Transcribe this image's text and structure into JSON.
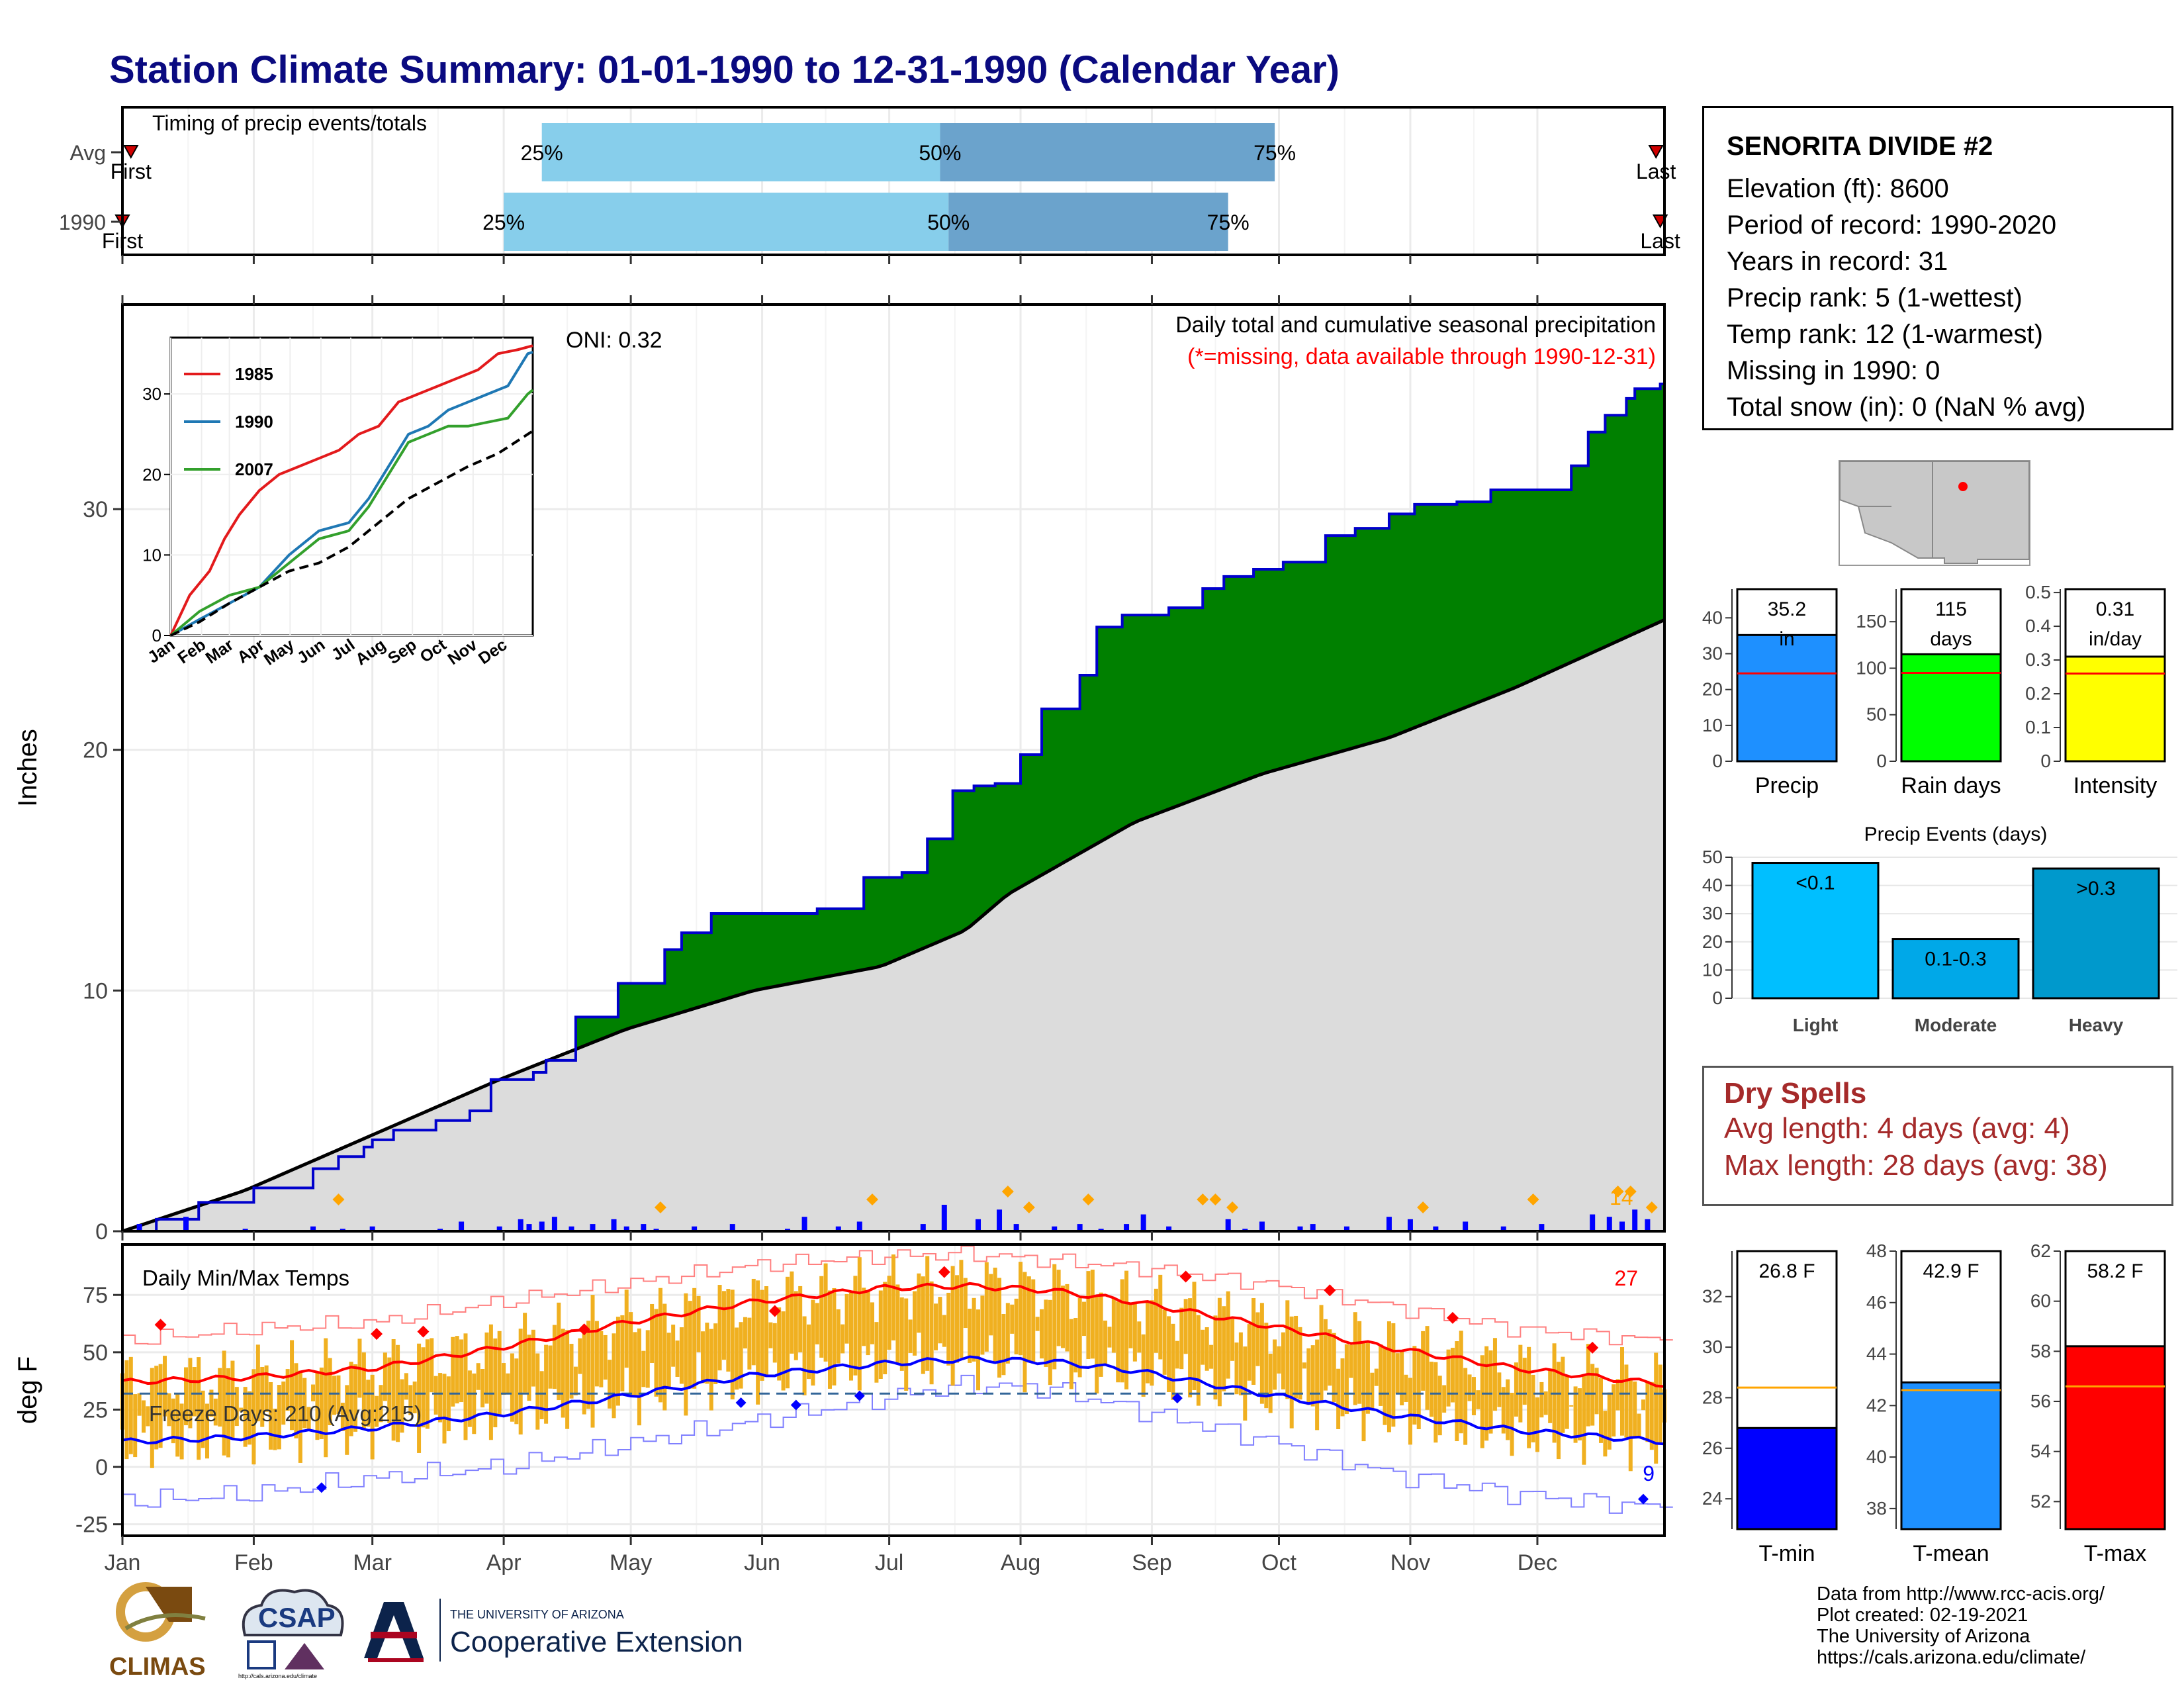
{
  "page": {
    "title": "Station Climate Summary: 01-01-1990 to 12-31-1990 (Calendar Year)",
    "credits": [
      "Data from http://www.rcc-acis.org/",
      "Plot created: 02-19-2021",
      "The University of Arizona",
      "https://cals.arizona.edu/climate/"
    ],
    "logos": {
      "climas": "CLIMAS",
      "csap": "CSAP",
      "csap_url": "http://cals.arizona.edu/climate",
      "ua_small": "THE UNIVERSITY OF ARIZONA",
      "ua_big": "Cooperative Extension"
    },
    "colors": {
      "title": "#0a0a80",
      "green": "#008000",
      "brown": "#7a4a10",
      "cum_line": "#0000cc",
      "normal_fill": "#dcdcdc",
      "bars": "#0000ff",
      "orange": "#ffa500",
      "temp_bar": "#f0b020",
      "tmax_line": "#ff0000",
      "tmin_line": "#0000ff",
      "light_blue": "#87ceeb",
      "steel_blue": "#6ba3cc"
    }
  },
  "station": {
    "name": "SENORITA DIVIDE #2",
    "lines": [
      "Elevation (ft): 8600",
      "Period of record: 1990-2020",
      "Years in record: 31",
      "Precip rank: 5 (1-wettest)",
      "Temp rank: 12 (1-warmest)",
      "Missing in 1990: 0",
      "Total snow (in): 0 (NaN % avg)"
    ]
  },
  "dry_spells": {
    "title": "Dry Spells",
    "lines": [
      "Avg length: 4 days (avg: 4)",
      "Max length: 28 days (avg: 38)"
    ]
  },
  "chart_data": [
    {
      "id": "timing",
      "type": "bar",
      "title": "Timing of precip events/totals",
      "categories": [
        "Avg",
        "1990"
      ],
      "x_axis": "calendar year, Jan-Dec (day of year)",
      "series": [
        {
          "name": "Avg",
          "first_label": "First",
          "last_label": "Last",
          "p25_label": "25%",
          "p50_label": "50%",
          "p75_label": "75%",
          "first_day": 3,
          "p25_day": 100,
          "p50_day": 194,
          "p75_day": 273,
          "last_day": 363
        },
        {
          "name": "1990",
          "first_label": "First",
          "last_label": "Last",
          "p25_label": "25%",
          "p50_label": "50%",
          "p75_label": "75%",
          "first_day": 1,
          "p25_day": 91,
          "p50_day": 196,
          "p75_day": 262,
          "last_day": 364
        }
      ]
    },
    {
      "id": "precip",
      "type": "area",
      "title": "Daily total and cumulative seasonal precipitation",
      "subtitle": "(*=missing, data available through 1990-12-31)",
      "oni_label": "ONI: 0.32",
      "ylabel": "Inches",
      "ylim": [
        0,
        38.5
      ],
      "yticks": [
        0,
        10,
        20,
        30
      ],
      "max_label": "14",
      "series": [
        {
          "name": "1990",
          "x_day": [
            1,
            9,
            19,
            32,
            46,
            52,
            58,
            60,
            65,
            75,
            83,
            88,
            98,
            101,
            108,
            118,
            129,
            133,
            140,
            155,
            165,
            176,
            181,
            185,
            191,
            197,
            202,
            207,
            213,
            218,
            227,
            231,
            237,
            248,
            256,
            261,
            268,
            275,
            285,
            292,
            300,
            306,
            316,
            324,
            343,
            347,
            351,
            356,
            358,
            363,
            364,
            365
          ],
          "y": [
            0,
            0.5,
            1.2,
            1.8,
            2.6,
            3.1,
            3.5,
            3.8,
            4.2,
            4.6,
            5.0,
            6.3,
            6.6,
            7.1,
            8.9,
            10.3,
            11.7,
            12.4,
            13.2,
            13.2,
            13.4,
            14.7,
            14.7,
            14.9,
            16.3,
            18.3,
            18.5,
            18.6,
            19.8,
            21.7,
            23.1,
            25.1,
            25.6,
            25.9,
            26.7,
            27.2,
            27.5,
            27.8,
            28.9,
            29.2,
            29.8,
            30.2,
            30.3,
            30.8,
            31.8,
            33.2,
            33.9,
            34.6,
            35.0,
            35.0,
            35.2,
            35.2
          ]
        },
        {
          "name": "Avg",
          "x_day": [
            1,
            30,
            60,
            90,
            120,
            150,
            180,
            200,
            210,
            240,
            270,
            300,
            330,
            365
          ],
          "y": [
            0,
            1.7,
            4.0,
            6.3,
            8.4,
            10.0,
            11.0,
            12.5,
            14.0,
            17.0,
            19.0,
            20.5,
            22.6,
            25.4
          ]
        }
      ],
      "daily_precip": {
        "x_day": [
          5,
          16,
          30,
          46,
          53,
          60,
          76,
          81,
          90,
          95,
          97,
          100,
          103,
          107,
          112,
          117,
          120,
          124,
          127,
          136,
          145,
          158,
          162,
          170,
          175,
          190,
          195,
          203,
          208,
          212,
          221,
          227,
          232,
          238,
          242,
          248,
          262,
          266,
          270,
          279,
          282,
          290,
          300,
          305,
          311,
          318,
          327,
          336,
          348,
          352,
          355,
          358,
          361
        ],
        "y": [
          0.3,
          0.6,
          0.1,
          0.2,
          0.1,
          0.2,
          0.1,
          0.4,
          0.2,
          0.5,
          0.3,
          0.4,
          0.6,
          0.2,
          0.3,
          0.5,
          0.2,
          0.3,
          0.1,
          0.2,
          0.3,
          0.1,
          0.6,
          0.2,
          0.4,
          0.3,
          1.1,
          0.5,
          0.9,
          0.3,
          0.2,
          0.3,
          0.1,
          0.3,
          0.7,
          0.2,
          0.5,
          0.1,
          0.4,
          0.2,
          0.3,
          0.2,
          0.6,
          0.5,
          0.2,
          0.4,
          0.2,
          0.3,
          0.7,
          0.6,
          0.4,
          0.9,
          0.5
        ]
      },
      "orange_markers_day": [
        52,
        128,
        178,
        210,
        215,
        229,
        256,
        259,
        263,
        308,
        334,
        354,
        357,
        362
      ],
      "inset": {
        "type": "line",
        "ylim": [
          0,
          37
        ],
        "yticks": [
          0,
          10,
          20,
          30
        ],
        "months": [
          "Jan",
          "Feb",
          "Mar",
          "Apr",
          "May",
          "Jun",
          "Jul",
          "Aug",
          "Sep",
          "Oct",
          "Nov",
          "Dec"
        ],
        "series": [
          {
            "name": "1985",
            "color": "#e31a1c",
            "x_day": [
              1,
              20,
              40,
              55,
              70,
              90,
              110,
              130,
              150,
              170,
              190,
              210,
              230,
              250,
              270,
              290,
              310,
              330,
              350,
              365
            ],
            "y": [
              0,
              5,
              8,
              12,
              15,
              18,
              20,
              21,
              22,
              23,
              25,
              26,
              29,
              30,
              31,
              32,
              33,
              35,
              35.5,
              36
            ]
          },
          {
            "name": "1990",
            "color": "#1f78b4",
            "x_day": [
              1,
              30,
              60,
              90,
              120,
              150,
              180,
              200,
              220,
              240,
              260,
              280,
              300,
              320,
              340,
              360,
              365
            ],
            "y": [
              0,
              2,
              4,
              6,
              10,
              13,
              14,
              17,
              21,
              25,
              26,
              28,
              29,
              30,
              31,
              35,
              35.2
            ]
          },
          {
            "name": "2007",
            "color": "#33a02c",
            "x_day": [
              1,
              30,
              60,
              90,
              120,
              150,
              180,
              200,
              220,
              240,
              260,
              280,
              300,
              320,
              340,
              360,
              365
            ],
            "y": [
              0,
              3,
              5,
              6,
              9,
              12,
              13,
              16,
              20,
              24,
              25,
              26,
              26,
              26.5,
              27,
              30,
              30.5
            ]
          },
          {
            "name": "Avg",
            "color": "#000000",
            "x_day": [
              1,
              30,
              60,
              90,
              120,
              150,
              180,
              210,
              240,
              270,
              300,
              330,
              365
            ],
            "y": [
              0,
              1.7,
              4,
              6,
              8,
              9,
              11,
              14,
              17,
              19,
              21,
              22.6,
              25.4
            ]
          }
        ]
      }
    },
    {
      "id": "temps",
      "type": "line",
      "title": "Daily Min/Max Temps",
      "freeze_label": "Freeze Days: 210 (Avg:215)",
      "ylabel": "deg F",
      "ylim": [
        -30,
        97
      ],
      "yticks": [
        -25,
        0,
        25,
        50,
        75
      ],
      "xticks": [
        "Jan",
        "Feb",
        "Mar",
        "Apr",
        "May",
        "Jun",
        "Jul",
        "Aug",
        "Sep",
        "Oct",
        "Nov",
        "Dec"
      ],
      "freeze_line": 32,
      "max_label": "27",
      "min_label": "9",
      "series": [
        {
          "name": "Avg Tmax",
          "x_day": [
            1,
            30,
            60,
            90,
            120,
            150,
            180,
            200,
            220,
            240,
            270,
            300,
            330,
            365
          ],
          "y": [
            37,
            39,
            43,
            52,
            63,
            72,
            78,
            79,
            77,
            72,
            62,
            52,
            43,
            36
          ]
        },
        {
          "name": "Avg Tmin",
          "x_day": [
            1,
            30,
            60,
            90,
            120,
            150,
            180,
            200,
            220,
            240,
            270,
            300,
            330,
            365
          ],
          "y": [
            11,
            13,
            17,
            23,
            31,
            40,
            45,
            47,
            46,
            42,
            32,
            23,
            16,
            11
          ]
        },
        {
          "name": "Record high",
          "x_day": [
            1,
            30,
            60,
            90,
            120,
            150,
            180,
            200,
            220,
            240,
            270,
            300,
            330,
            365
          ],
          "y": [
            55,
            60,
            63,
            72,
            80,
            88,
            92,
            93,
            90,
            87,
            80,
            70,
            60,
            55
          ]
        },
        {
          "name": "Record low",
          "x_day": [
            1,
            30,
            60,
            90,
            120,
            150,
            180,
            200,
            220,
            240,
            270,
            300,
            330,
            365
          ],
          "y": [
            -15,
            -12,
            -5,
            0,
            10,
            20,
            30,
            36,
            34,
            25,
            12,
            -3,
            -12,
            -18
          ]
        }
      ],
      "red_markers": [
        {
          "x": 10,
          "y": 62
        },
        {
          "x": 61,
          "y": 58
        },
        {
          "x": 72,
          "y": 59
        },
        {
          "x": 110,
          "y": 60
        },
        {
          "x": 155,
          "y": 68
        },
        {
          "x": 195,
          "y": 85
        },
        {
          "x": 252,
          "y": 83
        },
        {
          "x": 286,
          "y": 77
        },
        {
          "x": 315,
          "y": 65
        },
        {
          "x": 348,
          "y": 52
        }
      ],
      "blue_markers": [
        {
          "x": 48,
          "y": -9
        },
        {
          "x": 147,
          "y": 28
        },
        {
          "x": 160,
          "y": 27
        },
        {
          "x": 175,
          "y": 31
        },
        {
          "x": 250,
          "y": 30
        },
        {
          "x": 360,
          "y": -14
        }
      ]
    },
    {
      "id": "precip_stats",
      "type": "bar",
      "panels": [
        {
          "name": "Precip",
          "label": "35.2 in",
          "value": 35.2,
          "avg": 24.5,
          "ylim": [
            0,
            48
          ],
          "yticks": [
            0,
            10,
            20,
            30,
            40
          ],
          "color": "#1e90ff"
        },
        {
          "name": "Rain days",
          "label": "115 days",
          "value": 115,
          "avg": 95,
          "ylim": [
            0,
            185
          ],
          "yticks": [
            0,
            50,
            100,
            150
          ],
          "color": "#00ff00"
        },
        {
          "name": "Intensity",
          "label": "0.31 in/day",
          "value": 0.31,
          "avg": 0.26,
          "ylim": [
            0,
            0.51
          ],
          "yticks": [
            0,
            0.1,
            0.2,
            0.3,
            0.4,
            0.5
          ],
          "color": "#ffff00"
        }
      ]
    },
    {
      "id": "precip_events",
      "type": "bar",
      "title": "Precip Events (days)",
      "categories": [
        "Light",
        "Moderate",
        "Heavy"
      ],
      "bar_labels": [
        "<0.1",
        "0.1-0.3",
        ">0.3"
      ],
      "values": [
        48,
        21,
        46
      ],
      "colors": [
        "#00bfff",
        "#00a8e8",
        "#0099cc"
      ],
      "ylim": [
        0,
        50
      ],
      "yticks": [
        0,
        10,
        20,
        30,
        40,
        50
      ]
    },
    {
      "id": "temp_stats",
      "type": "bar",
      "panels": [
        {
          "name": "T-min",
          "label": "26.8 F",
          "value": 26.8,
          "avg": 28.4,
          "ylim": [
            22.8,
            33.8
          ],
          "yticks": [
            24,
            26,
            28,
            30,
            32
          ],
          "color": "#0000ff"
        },
        {
          "name": "T-mean",
          "label": "42.9 F",
          "value": 42.9,
          "avg": 42.6,
          "ylim": [
            37.2,
            48
          ],
          "yticks": [
            38,
            40,
            42,
            44,
            46,
            48
          ],
          "color": "#1e90ff"
        },
        {
          "name": "T-max",
          "label": "58.2 F",
          "value": 58.2,
          "avg": 56.6,
          "ylim": [
            50.9,
            62
          ],
          "yticks": [
            52,
            54,
            56,
            58,
            60,
            62
          ],
          "color": "#ff0000"
        }
      ]
    }
  ]
}
